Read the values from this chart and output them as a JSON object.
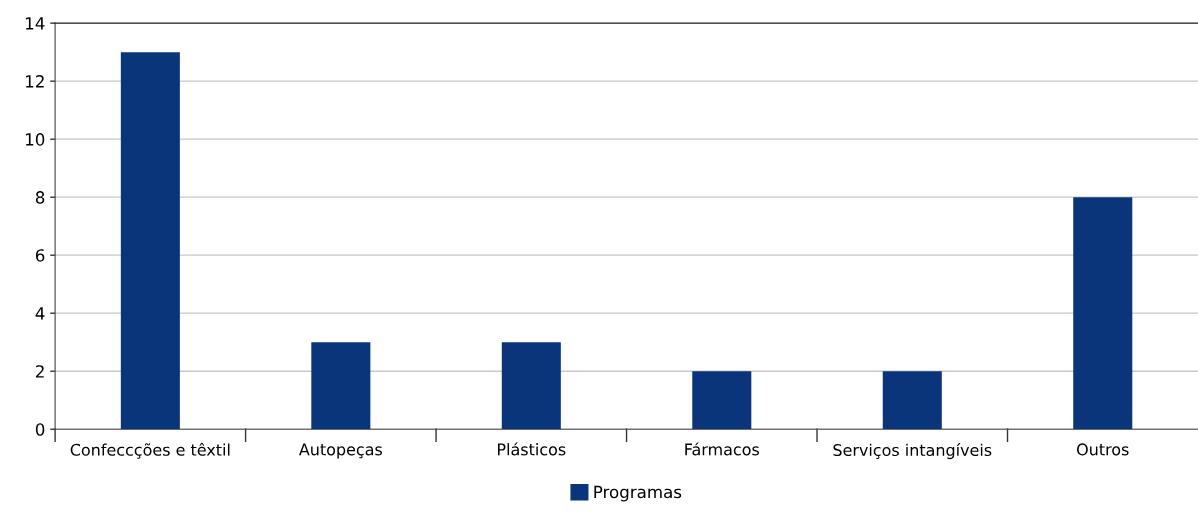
{
  "chart_data": {
    "type": "bar",
    "categories": [
      "Confeccções e têxtil",
      "Autopeças",
      "Plásticos",
      "Fármacos",
      "Serviços intangíveis",
      "Outros"
    ],
    "series": [
      {
        "name": "Programas",
        "color": "#0a357a",
        "values": [
          13,
          3,
          3,
          2,
          2,
          8
        ]
      }
    ],
    "ylim": [
      0,
      14
    ],
    "yticks": [
      0,
      2,
      4,
      6,
      8,
      10,
      12,
      14
    ],
    "grid": "y",
    "legend": "bottom"
  }
}
